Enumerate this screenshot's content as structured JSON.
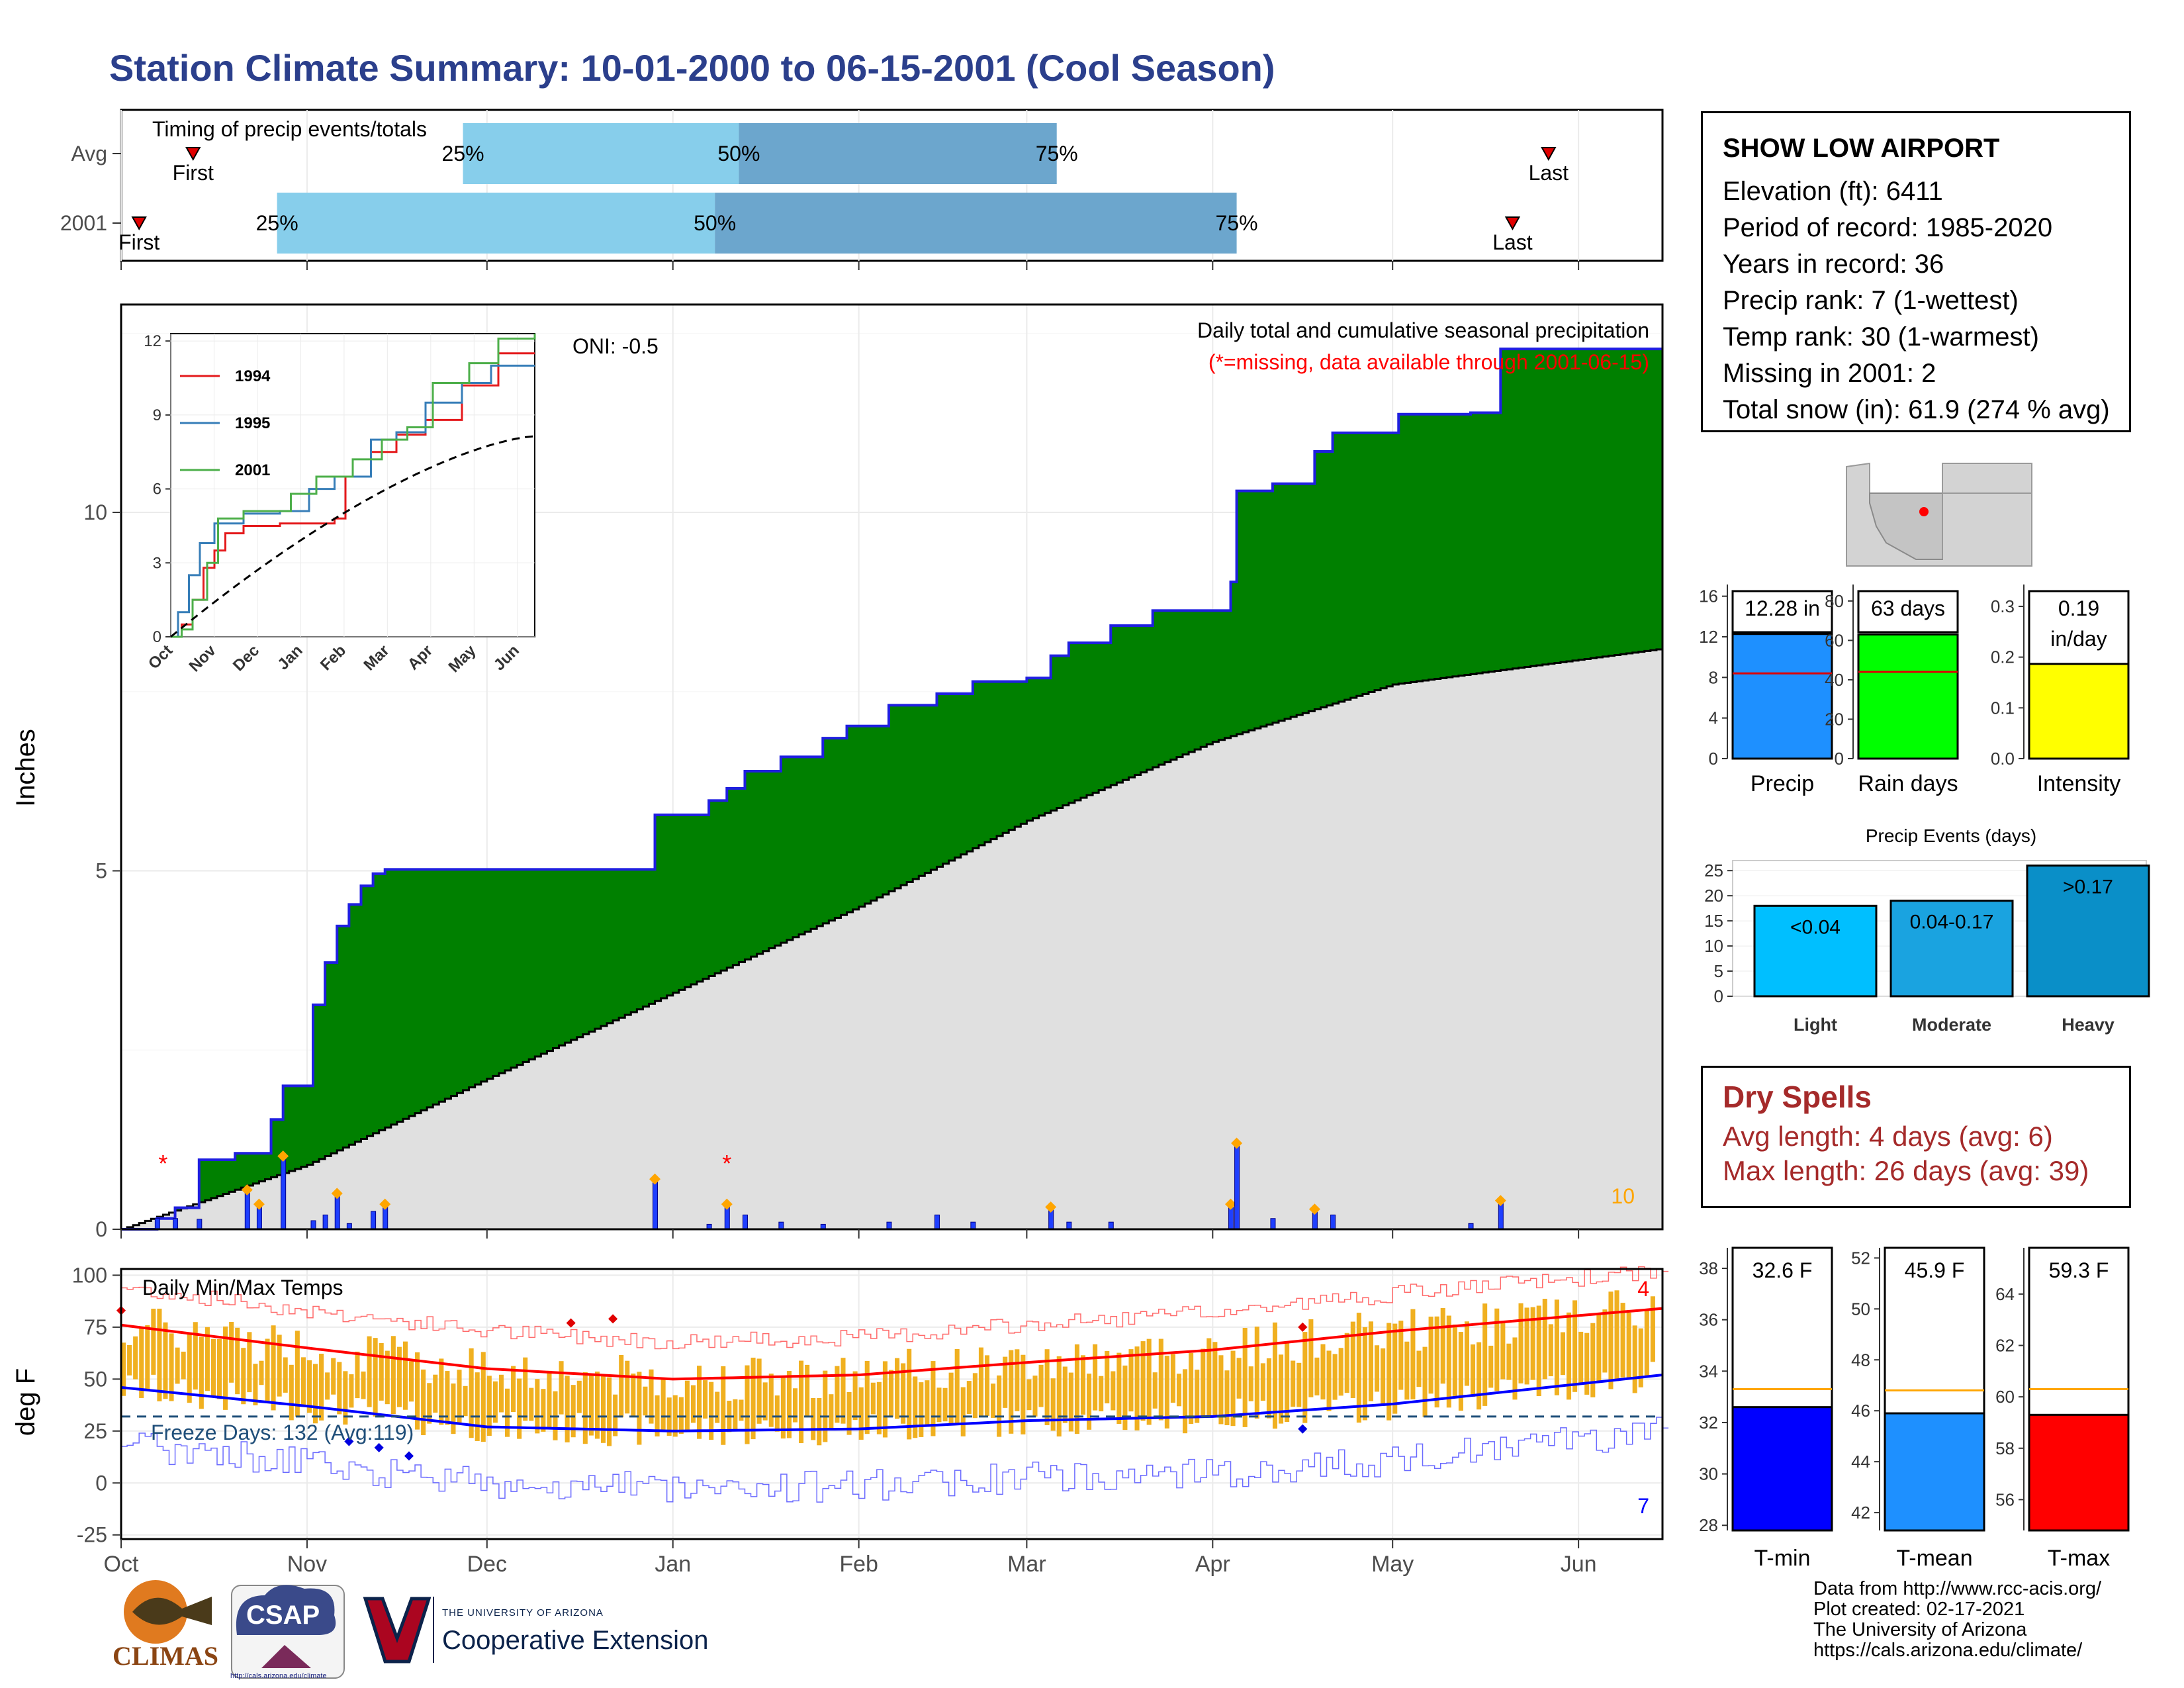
{
  "title": "Station Climate Summary: 10-01-2000 to 06-15-2001 (Cool Season)",
  "colors": {
    "title": "#2b3f8c",
    "cumulative_fill": "#008000",
    "cumulative_line": "#1f1fe0",
    "average_fill": "#e0e0e0",
    "precip_bar": "#1f3fff",
    "temp_bar": "#f0b020",
    "max_line": "#ff0000",
    "min_line": "#0000ff",
    "dry_spells": "#a52a2a"
  },
  "timing_panel": {
    "title": "Timing of precip events/totals",
    "rows": [
      {
        "label": "Avg",
        "first_label": "First",
        "last_label": "Last",
        "first": "2000-10-13",
        "p25": "2000-11-27",
        "p50": "2001-01-12",
        "p75": "2001-03-06",
        "last": "2001-05-27",
        "p25_label": "25%",
        "p50_label": "50%",
        "p75_label": "75%"
      },
      {
        "label": "2001",
        "first_label": "First",
        "last_label": "Last",
        "first": "2000-10-04",
        "p25": "2000-10-27",
        "p50": "2001-01-08",
        "p75": "2001-04-05",
        "last": "2001-05-21",
        "p25_label": "25%",
        "p50_label": "50%",
        "p75_label": "75%"
      }
    ]
  },
  "precip_panel": {
    "subtitle": "Daily total and cumulative seasonal precipitation",
    "missing_note": "(*=missing, data available through 2001-06-15)",
    "oni": "ONI: -0.5",
    "ylabel": "Inches",
    "yticks": [
      "0",
      "5",
      "10"
    ],
    "snow_count": "10",
    "missing_marker": "*"
  },
  "inset": {
    "yticks": [
      "0",
      "3",
      "6",
      "9",
      "12"
    ],
    "xticks": [
      "Oct",
      "Nov",
      "Dec",
      "Jan",
      "Feb",
      "Mar",
      "Apr",
      "May",
      "Jun"
    ],
    "legend": [
      "1994",
      "1995",
      "2001"
    ]
  },
  "temp_panel": {
    "title": "Daily Min/Max Temps",
    "ylabel": "deg F",
    "yticks": [
      "-25",
      "0",
      "25",
      "50",
      "75",
      "100"
    ],
    "freeze_text": "Freeze Days: 132 (Avg:119)",
    "max_count": "4",
    "min_count": "7"
  },
  "month_labels": [
    "Oct",
    "Nov",
    "Dec",
    "Jan",
    "Feb",
    "Mar",
    "Apr",
    "May",
    "Jun"
  ],
  "station": {
    "name": "SHOW LOW AIRPORT",
    "lines": [
      "Elevation (ft): 6411",
      "Period of record: 1985-2020",
      "Years in record: 36",
      "Precip rank: 7 (1-wettest)",
      "Temp rank: 30 (1-warmest)",
      "Missing in 2001: 2",
      "Total snow (in): 61.9 (274 % avg)"
    ]
  },
  "summary_bars": [
    {
      "label": "Precip",
      "value_text": "12.28 in",
      "value": 12.28,
      "avg": 8.4,
      "ymax": 16.5,
      "ticks": [
        "0",
        "4",
        "8",
        "12",
        "16"
      ],
      "color": "#1e90ff"
    },
    {
      "label": "Rain days",
      "value_text": "63 days",
      "value": 63,
      "avg": 44,
      "ymax": 85,
      "ticks": [
        "0",
        "20",
        "40",
        "60",
        "80"
      ],
      "color": "#00ff00"
    },
    {
      "label": "Intensity",
      "value_text": "0.19\nin/day",
      "value": 0.19,
      "avg": 0.19,
      "ymax": 0.33,
      "ticks": [
        "0.0",
        "0.1",
        "0.2",
        "0.3"
      ],
      "color": "#ffff00"
    }
  ],
  "precip_events": {
    "title": "Precip Events (days)",
    "categories": [
      "Light",
      "Moderate",
      "Heavy"
    ],
    "bar_labels": [
      "<0.04",
      "0.04-0.17",
      ">0.17"
    ],
    "values": [
      18,
      19,
      26
    ],
    "colors": [
      "#00bfff",
      "#1aa3e0",
      "#0a8fc8"
    ],
    "yticks": [
      "0",
      "5",
      "10",
      "15",
      "20",
      "25"
    ]
  },
  "dry_spells": {
    "title": "Dry Spells",
    "avg_line": "Avg length: 4 days (avg: 6)",
    "max_line": "Max length: 26 days (avg: 39)"
  },
  "temp_summary": [
    {
      "label": "T-min",
      "value_text": "32.6 F",
      "value": 32.6,
      "avg": 33.3,
      "ymin": 27.8,
      "ymax": 38.8,
      "ticks": [
        "28",
        "30",
        "32",
        "34",
        "36",
        "38"
      ],
      "color": "#0000ff"
    },
    {
      "label": "T-mean",
      "value_text": "45.9 F",
      "value": 45.9,
      "avg": 46.8,
      "ymin": 41.3,
      "ymax": 52.4,
      "ticks": [
        "42",
        "44",
        "46",
        "48",
        "50",
        "52"
      ],
      "color": "#1e90ff"
    },
    {
      "label": "T-max",
      "value_text": "59.3 F",
      "value": 59.3,
      "avg": 60.3,
      "ymin": 54.8,
      "ymax": 65.8,
      "ticks": [
        "56",
        "58",
        "60",
        "62",
        "64"
      ],
      "color": "#ff0000"
    }
  ],
  "credits": [
    "Data from http://www.rcc-acis.org/",
    "Plot created: 02-17-2021",
    "The University of Arizona",
    "https://cals.arizona.edu/climate/"
  ],
  "logos": {
    "climas": "CLIMAS",
    "csap": "CSAP",
    "csap_url": "http://cals.arizona.edu/climate",
    "ua_line1": "THE UNIVERSITY OF ARIZONA",
    "ua_line2": "Cooperative Extension"
  },
  "chart_data": [
    {
      "type": "area",
      "title": "Daily total and cumulative seasonal precipitation",
      "ylabel": "Inches",
      "ylim": [
        0,
        12.9
      ],
      "x_start": "2000-10-01",
      "x_end": "2001-06-15",
      "series": [
        {
          "name": "2001",
          "x": [
            "2000-10-01",
            "2000-10-07",
            "2000-10-10",
            "2000-10-14",
            "2000-10-20",
            "2000-10-26",
            "2000-10-28",
            "2000-11-02",
            "2000-11-04",
            "2000-11-06",
            "2000-11-08",
            "2000-11-10",
            "2000-11-12",
            "2000-11-14",
            "2000-12-29",
            "2001-01-07",
            "2001-01-10",
            "2001-01-13",
            "2001-01-19",
            "2001-01-26",
            "2001-01-30",
            "2001-02-06",
            "2001-02-14",
            "2001-02-20",
            "2001-03-01",
            "2001-03-05",
            "2001-03-08",
            "2001-03-15",
            "2001-03-22",
            "2001-04-04",
            "2001-04-05",
            "2001-04-11",
            "2001-04-18",
            "2001-04-21",
            "2001-05-02",
            "2001-05-14",
            "2001-05-19",
            "2001-06-15"
          ],
          "values": [
            0.0,
            0.15,
            0.3,
            0.97,
            1.06,
            1.53,
            2.0,
            3.13,
            3.72,
            4.23,
            4.53,
            4.79,
            4.96,
            5.02,
            5.78,
            5.98,
            6.15,
            6.39,
            6.59,
            6.85,
            7.02,
            7.31,
            7.47,
            7.64,
            7.69,
            8.0,
            8.18,
            8.42,
            8.63,
            9.03,
            10.3,
            10.4,
            10.85,
            11.11,
            11.37,
            11.39,
            12.28,
            12.28
          ]
        },
        {
          "name": "Average",
          "x": [
            "2000-10-01",
            "2000-11-01",
            "2000-12-01",
            "2001-01-01",
            "2001-02-01",
            "2001-03-01",
            "2001-04-01",
            "2001-05-01",
            "2001-06-15"
          ],
          "values": [
            0.0,
            0.9,
            2.1,
            3.3,
            4.5,
            5.7,
            6.8,
            7.6,
            8.1
          ]
        }
      ],
      "daily_precip": [
        {
          "x": "2000-10-07",
          "y": 0.15
        },
        {
          "x": "2000-10-10",
          "y": 0.15
        },
        {
          "x": "2000-10-14",
          "y": 0.14
        },
        {
          "x": "2000-10-22",
          "y": 0.55
        },
        {
          "x": "2000-10-24",
          "y": 0.35
        },
        {
          "x": "2000-10-28",
          "y": 1.02
        },
        {
          "x": "2000-11-02",
          "y": 0.12
        },
        {
          "x": "2000-11-04",
          "y": 0.2
        },
        {
          "x": "2000-11-06",
          "y": 0.5
        },
        {
          "x": "2000-11-08",
          "y": 0.08
        },
        {
          "x": "2000-11-12",
          "y": 0.25
        },
        {
          "x": "2000-11-14",
          "y": 0.35
        },
        {
          "x": "2000-12-29",
          "y": 0.7
        },
        {
          "x": "2001-01-07",
          "y": 0.07
        },
        {
          "x": "2001-01-10",
          "y": 0.35
        },
        {
          "x": "2001-01-13",
          "y": 0.2
        },
        {
          "x": "2001-01-19",
          "y": 0.1
        },
        {
          "x": "2001-01-26",
          "y": 0.07
        },
        {
          "x": "2001-02-06",
          "y": 0.1
        },
        {
          "x": "2001-02-14",
          "y": 0.2
        },
        {
          "x": "2001-02-20",
          "y": 0.1
        },
        {
          "x": "2001-03-05",
          "y": 0.31
        },
        {
          "x": "2001-03-08",
          "y": 0.1
        },
        {
          "x": "2001-03-15",
          "y": 0.1
        },
        {
          "x": "2001-04-04",
          "y": 0.35
        },
        {
          "x": "2001-04-05",
          "y": 1.2
        },
        {
          "x": "2001-04-11",
          "y": 0.15
        },
        {
          "x": "2001-04-18",
          "y": 0.28
        },
        {
          "x": "2001-04-21",
          "y": 0.2
        },
        {
          "x": "2001-05-14",
          "y": 0.08
        },
        {
          "x": "2001-05-19",
          "y": 0.4
        }
      ]
    },
    {
      "type": "line",
      "title": "Daily Min/Max Temps",
      "ylabel": "deg F",
      "ylim": [
        -27,
        103
      ],
      "x": [
        "2000-10-01",
        "2000-11-01",
        "2000-12-01",
        "2001-01-01",
        "2001-02-01",
        "2001-03-01",
        "2001-04-01",
        "2001-05-01",
        "2001-06-15"
      ],
      "series": [
        {
          "name": "Avg max",
          "values": [
            76,
            65,
            55,
            50,
            52,
            58,
            64,
            73,
            84
          ]
        },
        {
          "name": "Avg min",
          "values": [
            46,
            37,
            27,
            25,
            26,
            30,
            32,
            38,
            52
          ]
        }
      ],
      "freeze_line": 32
    }
  ]
}
